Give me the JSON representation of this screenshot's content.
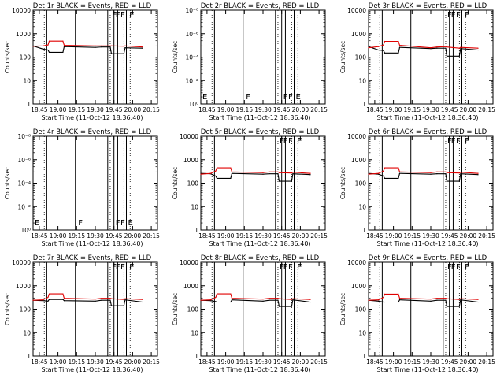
{
  "figure": {
    "panels": [
      {
        "title": "Det 1r BLACK = Events, RED = LLD",
        "xlabel": "Start Time (11-Oct-12 18:36:40)",
        "ylabel": "Counts/sec",
        "yticks": [
          "1",
          "10",
          "100",
          "1000",
          "10000"
        ],
        "xticks": [
          "18:45",
          "19:00",
          "19:15",
          "19:30",
          "19:45",
          "20:00",
          "20:15"
        ]
      },
      {
        "title": "Det 2r BLACK = Events, RED = LLD",
        "xlabel": "Start Time (11-Oct-12 18:36:40)",
        "ylabel": "Counts/sec",
        "yticks": [
          "10⁰",
          "10⁻²",
          "10⁻⁴",
          "10⁻⁶",
          "10⁻⁸"
        ],
        "xticks": [
          "18:45",
          "19:00",
          "19:15",
          "19:30",
          "19:45",
          "20:00",
          "20:15"
        ]
      },
      {
        "title": "Det 3r BLACK = Events, RED = LLD",
        "xlabel": "Start Time (11-Oct-12 18:36:40)",
        "ylabel": "Counts/sec",
        "yticks": [
          "1",
          "10",
          "100",
          "1000",
          "10000"
        ],
        "xticks": [
          "18:45",
          "19:00",
          "19:15",
          "19:30",
          "19:45",
          "20:00",
          "20:15"
        ]
      },
      {
        "title": "Det 4r BLACK = Events, RED = LLD",
        "xlabel": "Start Time (11-Oct-12 18:36:40)",
        "ylabel": "Counts/sec",
        "yticks": [
          "10⁰",
          "10⁻²",
          "10⁻⁴",
          "10⁻⁶",
          "10⁻⁸"
        ],
        "xticks": [
          "18:45",
          "19:00",
          "19:15",
          "19:30",
          "19:45",
          "20:00",
          "20:15"
        ]
      },
      {
        "title": "Det 5r BLACK = Events, RED = LLD",
        "xlabel": "Start Time (11-Oct-12 18:36:40)",
        "ylabel": "Counts/sec",
        "yticks": [
          "1",
          "10",
          "100",
          "1000",
          "10000"
        ],
        "xticks": [
          "18:45",
          "19:00",
          "19:15",
          "19:30",
          "19:45",
          "20:00",
          "20:15"
        ]
      },
      {
        "title": "Det 6r BLACK = Events, RED = LLD",
        "xlabel": "Start Time (11-Oct-12 18:36:40)",
        "ylabel": "Counts/sec",
        "yticks": [
          "1",
          "10",
          "100",
          "1000",
          "10000"
        ],
        "xticks": [
          "18:45",
          "19:00",
          "19:15",
          "19:30",
          "19:45",
          "20:00",
          "20:15"
        ]
      },
      {
        "title": "Det 7r BLACK = Events, RED = LLD",
        "xlabel": "Start Time (11-Oct-12 18:36:40)",
        "ylabel": "Counts/sec",
        "yticks": [
          "1",
          "10",
          "100",
          "1000",
          "10000"
        ],
        "xticks": [
          "18:45",
          "19:00",
          "19:15",
          "19:30",
          "19:45",
          "20:00",
          "20:15"
        ]
      },
      {
        "title": "Det 8r BLACK = Events, RED = LLD",
        "xlabel": "Start Time (11-Oct-12 18:36:40)",
        "ylabel": "Counts/sec",
        "yticks": [
          "1",
          "10",
          "100",
          "1000",
          "10000"
        ],
        "xticks": [
          "18:45",
          "19:00",
          "19:15",
          "19:30",
          "19:45",
          "20:00",
          "20:15"
        ]
      },
      {
        "title": "Det 9r BLACK = Events, RED = LLD",
        "xlabel": "Start Time (11-Oct-12 18:36:40)",
        "ylabel": "Counts/sec",
        "yticks": [
          "1",
          "10",
          "100",
          "1000",
          "10000"
        ],
        "xticks": [
          "18:45",
          "19:00",
          "19:15",
          "19:30",
          "19:45",
          "20:00",
          "20:15"
        ]
      }
    ]
  },
  "chart_data": [
    {
      "type": "line",
      "title": "Det 1r BLACK = Events, RED = LLD",
      "xlabel": "Start Time (11-Oct-12 18:36:40)",
      "ylabel": "Counts/sec",
      "xlim": [
        "18:40",
        "20:20"
      ],
      "ylim": [
        1,
        10000
      ],
      "yscale": "log",
      "series": [
        {
          "color": "#000000",
          "x": [
            "18:40",
            "18:48",
            "18:52",
            "18:53",
            "19:04",
            "19:05",
            "19:30",
            "19:35",
            "19:42",
            "19:43",
            "19:53",
            "19:54",
            "20:08"
          ],
          "values": [
            300,
            220,
            200,
            160,
            160,
            280,
            260,
            270,
            270,
            140,
            140,
            250,
            240
          ]
        },
        {
          "color": "#e00000",
          "x": [
            "18:40",
            "18:48",
            "18:52",
            "18:53",
            "19:04",
            "19:05",
            "19:30",
            "19:35",
            "19:42",
            "19:43",
            "19:53",
            "19:54",
            "20:08"
          ],
          "values": [
            290,
            300,
            330,
            480,
            480,
            320,
            300,
            300,
            300,
            300,
            290,
            300,
            270
          ]
        }
      ],
      "annotations": [
        "E",
        "F",
        "F",
        "E"
      ]
    },
    {
      "type": "line",
      "title": "Det 2r BLACK = Events, RED = LLD",
      "xlabel": "Start Time (11-Oct-12 18:36:40)",
      "ylabel": "Counts/sec",
      "xlim": [
        "18:40",
        "20:20"
      ],
      "series": [],
      "annotations": [
        "E",
        "F",
        "F",
        "F",
        "E"
      ]
    },
    {
      "type": "line",
      "title": "Det 3r BLACK = Events, RED = LLD",
      "xlabel": "Start Time (11-Oct-12 18:36:40)",
      "ylabel": "Counts/sec",
      "xlim": [
        "18:40",
        "20:20"
      ],
      "ylim": [
        1,
        10000
      ],
      "yscale": "log",
      "series": [
        {
          "color": "#000000",
          "x": [
            "18:40",
            "18:48",
            "18:52",
            "18:53",
            "19:04",
            "19:05",
            "19:30",
            "19:35",
            "19:42",
            "19:43",
            "19:53",
            "19:54",
            "20:08"
          ],
          "values": [
            280,
            200,
            190,
            150,
            150,
            260,
            230,
            240,
            240,
            110,
            110,
            230,
            200
          ]
        },
        {
          "color": "#e00000",
          "x": [
            "18:40",
            "18:48",
            "18:52",
            "18:53",
            "19:04",
            "19:05",
            "19:30",
            "19:35",
            "19:42",
            "19:43",
            "19:53",
            "19:54",
            "20:08"
          ],
          "values": [
            250,
            280,
            330,
            470,
            470,
            320,
            250,
            270,
            280,
            270,
            240,
            260,
            240
          ]
        }
      ],
      "annotations": [
        "F",
        "F",
        "F",
        "E"
      ]
    },
    {
      "type": "line",
      "title": "Det 4r BLACK = Events, RED = LLD",
      "xlabel": "Start Time (11-Oct-12 18:36:40)",
      "ylabel": "Counts/sec",
      "xlim": [
        "18:40",
        "20:20"
      ],
      "series": [],
      "annotations": [
        "E",
        "F",
        "F",
        "F",
        "E"
      ]
    },
    {
      "type": "line",
      "title": "Det 5r BLACK = Events, RED = LLD",
      "xlabel": "Start Time (11-Oct-12 18:36:40)",
      "ylabel": "Counts/sec",
      "xlim": [
        "18:40",
        "20:20"
      ],
      "ylim": [
        1,
        10000
      ],
      "yscale": "log",
      "series": [
        {
          "color": "#000000",
          "x": [
            "18:40",
            "18:48",
            "18:52",
            "18:53",
            "19:04",
            "19:05",
            "19:30",
            "19:35",
            "19:42",
            "19:43",
            "19:53",
            "19:54",
            "20:08"
          ],
          "values": [
            260,
            250,
            200,
            160,
            160,
            260,
            240,
            250,
            250,
            120,
            120,
            250,
            230
          ]
        },
        {
          "color": "#e00000",
          "x": [
            "18:40",
            "18:48",
            "18:52",
            "18:53",
            "19:04",
            "19:05",
            "19:30",
            "19:35",
            "19:42",
            "19:43",
            "19:53",
            "19:54",
            "20:08"
          ],
          "values": [
            240,
            260,
            330,
            450,
            450,
            300,
            280,
            300,
            300,
            280,
            270,
            290,
            260
          ]
        }
      ],
      "annotations": [
        "F",
        "F",
        "F",
        "E"
      ]
    },
    {
      "type": "line",
      "title": "Det 6r BLACK = Events, RED = LLD",
      "xlabel": "Start Time (11-Oct-12 18:36:40)",
      "ylabel": "Counts/sec",
      "xlim": [
        "18:40",
        "20:20"
      ],
      "ylim": [
        1,
        10000
      ],
      "yscale": "log",
      "series": [
        {
          "color": "#000000",
          "x": [
            "18:40",
            "18:48",
            "18:52",
            "18:53",
            "19:04",
            "19:05",
            "19:30",
            "19:35",
            "19:42",
            "19:43",
            "19:53",
            "19:54",
            "20:08"
          ],
          "values": [
            260,
            240,
            200,
            160,
            160,
            260,
            240,
            250,
            250,
            120,
            120,
            250,
            230
          ]
        },
        {
          "color": "#e00000",
          "x": [
            "18:40",
            "18:48",
            "18:52",
            "18:53",
            "19:04",
            "19:05",
            "19:30",
            "19:35",
            "19:42",
            "19:43",
            "19:53",
            "19:54",
            "20:08"
          ],
          "values": [
            240,
            260,
            330,
            450,
            450,
            300,
            280,
            300,
            300,
            280,
            270,
            290,
            260
          ]
        }
      ],
      "annotations": [
        "F",
        "F",
        "F",
        "E"
      ]
    },
    {
      "type": "line",
      "title": "Det 7r BLACK = Events, RED = LLD",
      "xlabel": "Start Time (11-Oct-12 18:36:40)",
      "ylabel": "Counts/sec",
      "xlim": [
        "18:40",
        "20:20"
      ],
      "ylim": [
        1,
        10000
      ],
      "yscale": "log",
      "series": [
        {
          "color": "#000000",
          "x": [
            "18:40",
            "18:48",
            "18:52",
            "18:53",
            "19:04",
            "19:05",
            "19:30",
            "19:35",
            "19:42",
            "19:43",
            "19:53",
            "19:54",
            "20:08"
          ],
          "values": [
            240,
            230,
            220,
            260,
            260,
            230,
            220,
            240,
            240,
            140,
            140,
            250,
            200
          ]
        },
        {
          "color": "#e00000",
          "x": [
            "18:40",
            "18:48",
            "18:52",
            "18:53",
            "19:04",
            "19:05",
            "19:30",
            "19:35",
            "19:42",
            "19:43",
            "19:53",
            "19:54",
            "20:08"
          ],
          "values": [
            240,
            250,
            320,
            450,
            450,
            290,
            270,
            290,
            290,
            280,
            260,
            280,
            260
          ]
        }
      ],
      "annotations": [
        "F",
        "F",
        "F",
        "E"
      ]
    },
    {
      "type": "line",
      "title": "Det 8r BLACK = Events, RED = LLD",
      "xlabel": "Start Time (11-Oct-12 18:36:40)",
      "ylabel": "Counts/sec",
      "xlim": [
        "18:40",
        "20:20"
      ],
      "ylim": [
        1,
        10000
      ],
      "yscale": "log",
      "series": [
        {
          "color": "#000000",
          "x": [
            "18:40",
            "18:48",
            "18:52",
            "18:53",
            "19:04",
            "19:05",
            "19:30",
            "19:35",
            "19:42",
            "19:43",
            "19:53",
            "19:54",
            "20:08"
          ],
          "values": [
            240,
            230,
            210,
            200,
            200,
            250,
            220,
            240,
            240,
            130,
            130,
            250,
            200
          ]
        },
        {
          "color": "#e00000",
          "x": [
            "18:40",
            "18:48",
            "18:52",
            "18:53",
            "19:04",
            "19:05",
            "19:30",
            "19:35",
            "19:42",
            "19:43",
            "19:53",
            "19:54",
            "20:08"
          ],
          "values": [
            240,
            250,
            320,
            450,
            450,
            290,
            270,
            290,
            290,
            280,
            260,
            280,
            260
          ]
        }
      ],
      "annotations": [
        "F",
        "F",
        "F",
        "E"
      ]
    },
    {
      "type": "line",
      "title": "Det 9r BLACK = Events, RED = LLD",
      "xlabel": "Start Time (11-Oct-12 18:36:40)",
      "ylabel": "Counts/sec",
      "xlim": [
        "18:40",
        "20:20"
      ],
      "ylim": [
        1,
        10000
      ],
      "yscale": "log",
      "series": [
        {
          "color": "#000000",
          "x": [
            "18:40",
            "18:48",
            "18:52",
            "18:53",
            "19:04",
            "19:05",
            "19:30",
            "19:35",
            "19:42",
            "19:43",
            "19:53",
            "19:54",
            "20:08"
          ],
          "values": [
            240,
            220,
            200,
            200,
            200,
            250,
            220,
            240,
            240,
            130,
            130,
            250,
            200
          ]
        },
        {
          "color": "#e00000",
          "x": [
            "18:40",
            "18:48",
            "18:52",
            "18:53",
            "19:04",
            "19:05",
            "19:30",
            "19:35",
            "19:42",
            "19:43",
            "19:53",
            "19:54",
            "20:08"
          ],
          "values": [
            240,
            250,
            320,
            440,
            440,
            290,
            270,
            290,
            290,
            280,
            260,
            280,
            260
          ]
        }
      ],
      "annotations": [
        "F",
        "F",
        "F",
        "E"
      ]
    }
  ]
}
